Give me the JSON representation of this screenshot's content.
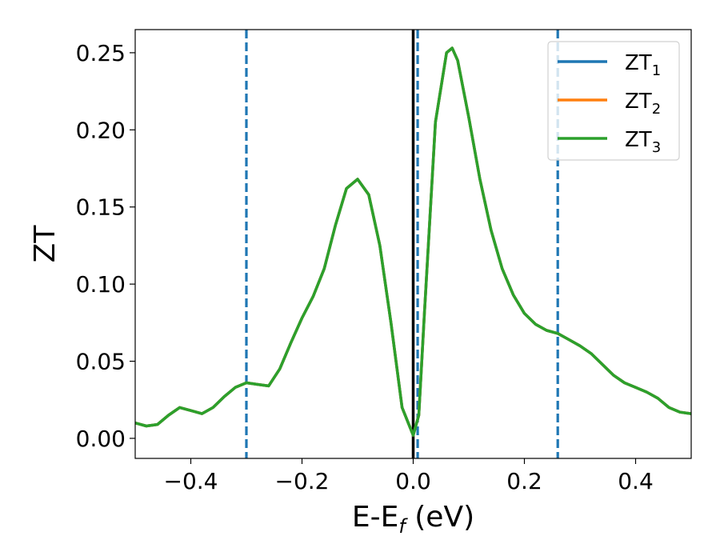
{
  "chart_data": {
    "type": "line",
    "xlabel": "E-E",
    "xlabel_sub": "f",
    "xlabel_unit": " (eV)",
    "ylabel": "ZT",
    "xlim": [
      -0.5,
      0.5
    ],
    "ylim": [
      -0.013,
      0.265
    ],
    "x_ticks": [
      -0.4,
      -0.2,
      0.0,
      0.2,
      0.4
    ],
    "x_tick_labels": [
      "−0.4",
      "−0.2",
      "0.0",
      "0.2",
      "0.4"
    ],
    "y_ticks": [
      0.0,
      0.05,
      0.1,
      0.15,
      0.2,
      0.25
    ],
    "y_tick_labels": [
      "0.00",
      "0.05",
      "0.10",
      "0.15",
      "0.20",
      "0.25"
    ],
    "grid": false,
    "legend_position": "top-right",
    "series": [
      {
        "name": "ZT",
        "name_sub": "1",
        "color": "#1f77b4",
        "x": [
          -0.5,
          -0.48,
          -0.46,
          -0.44,
          -0.42,
          -0.4,
          -0.38,
          -0.36,
          -0.34,
          -0.32,
          -0.3,
          -0.28,
          -0.26,
          -0.24,
          -0.22,
          -0.2,
          -0.18,
          -0.16,
          -0.14,
          -0.12,
          -0.1,
          -0.08,
          -0.06,
          -0.04,
          -0.02,
          0.0,
          0.01,
          0.02,
          0.04,
          0.06,
          0.07,
          0.08,
          0.1,
          0.12,
          0.14,
          0.16,
          0.18,
          0.2,
          0.22,
          0.24,
          0.26,
          0.28,
          0.3,
          0.32,
          0.34,
          0.36,
          0.38,
          0.4,
          0.42,
          0.44,
          0.46,
          0.48,
          0.5
        ],
        "y": [
          0.01,
          0.008,
          0.009,
          0.015,
          0.02,
          0.018,
          0.016,
          0.02,
          0.027,
          0.033,
          0.036,
          0.035,
          0.034,
          0.045,
          0.062,
          0.078,
          0.092,
          0.11,
          0.138,
          0.162,
          0.168,
          0.158,
          0.125,
          0.075,
          0.02,
          0.002,
          0.015,
          0.08,
          0.205,
          0.25,
          0.253,
          0.245,
          0.208,
          0.168,
          0.135,
          0.11,
          0.093,
          0.081,
          0.074,
          0.07,
          0.068,
          0.064,
          0.06,
          0.055,
          0.048,
          0.041,
          0.036,
          0.033,
          0.03,
          0.026,
          0.02,
          0.017,
          0.016
        ]
      },
      {
        "name": "ZT",
        "name_sub": "2",
        "color": "#ff7f0e",
        "x": [
          -0.5,
          -0.48,
          -0.46,
          -0.44,
          -0.42,
          -0.4,
          -0.38,
          -0.36,
          -0.34,
          -0.32,
          -0.3,
          -0.28,
          -0.26,
          -0.24,
          -0.22,
          -0.2,
          -0.18,
          -0.16,
          -0.14,
          -0.12,
          -0.1,
          -0.08,
          -0.06,
          -0.04,
          -0.02,
          0.0,
          0.01,
          0.02,
          0.04,
          0.06,
          0.07,
          0.08,
          0.1,
          0.12,
          0.14,
          0.16,
          0.18,
          0.2,
          0.22,
          0.24,
          0.26,
          0.28,
          0.3,
          0.32,
          0.34,
          0.36,
          0.38,
          0.4,
          0.42,
          0.44,
          0.46,
          0.48,
          0.5
        ],
        "y": [
          0.01,
          0.008,
          0.009,
          0.015,
          0.02,
          0.018,
          0.016,
          0.02,
          0.027,
          0.033,
          0.036,
          0.035,
          0.034,
          0.045,
          0.062,
          0.078,
          0.092,
          0.11,
          0.138,
          0.162,
          0.168,
          0.158,
          0.125,
          0.075,
          0.02,
          0.002,
          0.015,
          0.08,
          0.205,
          0.25,
          0.253,
          0.245,
          0.208,
          0.168,
          0.135,
          0.11,
          0.093,
          0.081,
          0.074,
          0.07,
          0.068,
          0.064,
          0.06,
          0.055,
          0.048,
          0.041,
          0.036,
          0.033,
          0.03,
          0.026,
          0.02,
          0.017,
          0.016
        ]
      },
      {
        "name": "ZT",
        "name_sub": "3",
        "color": "#2ca02c",
        "x": [
          -0.5,
          -0.48,
          -0.46,
          -0.44,
          -0.42,
          -0.4,
          -0.38,
          -0.36,
          -0.34,
          -0.32,
          -0.3,
          -0.28,
          -0.26,
          -0.24,
          -0.22,
          -0.2,
          -0.18,
          -0.16,
          -0.14,
          -0.12,
          -0.1,
          -0.08,
          -0.06,
          -0.04,
          -0.02,
          0.0,
          0.01,
          0.02,
          0.04,
          0.06,
          0.07,
          0.08,
          0.1,
          0.12,
          0.14,
          0.16,
          0.18,
          0.2,
          0.22,
          0.24,
          0.26,
          0.28,
          0.3,
          0.32,
          0.34,
          0.36,
          0.38,
          0.4,
          0.42,
          0.44,
          0.46,
          0.48,
          0.5
        ],
        "y": [
          0.01,
          0.008,
          0.009,
          0.015,
          0.02,
          0.018,
          0.016,
          0.02,
          0.027,
          0.033,
          0.036,
          0.035,
          0.034,
          0.045,
          0.062,
          0.078,
          0.092,
          0.11,
          0.138,
          0.162,
          0.168,
          0.158,
          0.125,
          0.075,
          0.02,
          0.002,
          0.015,
          0.08,
          0.205,
          0.25,
          0.253,
          0.245,
          0.208,
          0.168,
          0.135,
          0.11,
          0.093,
          0.081,
          0.074,
          0.07,
          0.068,
          0.064,
          0.06,
          0.055,
          0.048,
          0.041,
          0.036,
          0.033,
          0.03,
          0.026,
          0.02,
          0.017,
          0.016
        ]
      }
    ],
    "reference_lines": [
      {
        "x": -0.3,
        "style": "dashed",
        "color": "#1f77b4"
      },
      {
        "x": 0.008,
        "style": "dashed",
        "color": "#1f77b4"
      },
      {
        "x": 0.26,
        "style": "dashed",
        "color": "#1f77b4"
      },
      {
        "x": 0.0,
        "style": "solid",
        "color": "#000000"
      }
    ]
  }
}
